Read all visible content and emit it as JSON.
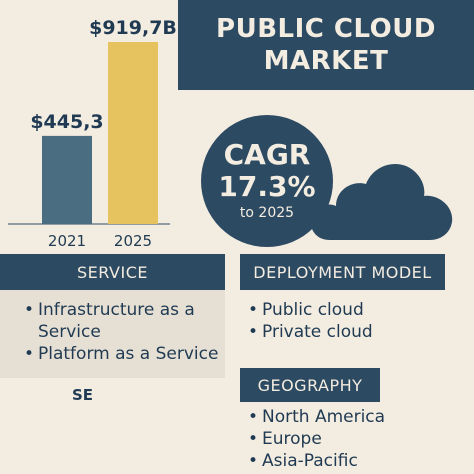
{
  "title": {
    "line1": "PUBLIC CLOUD",
    "line2": "MARKET"
  },
  "cagr": {
    "label": "CAGR",
    "value": "17.3%",
    "period": "to 2025"
  },
  "chart_data": {
    "type": "bar",
    "categories": [
      "2021",
      "2025"
    ],
    "values": [
      445.3,
      919.7
    ],
    "data_labels": [
      "$445,3",
      "$919,7B"
    ],
    "colors": [
      "#4a6d82",
      "#e6c35e"
    ]
  },
  "sections": {
    "service": {
      "header": "SERVICE",
      "items": [
        "Infrastructure as a Service",
        "Platform as a Service"
      ],
      "bullet": "•"
    },
    "deployment": {
      "header": "DEPLOYMENT MODEL",
      "items": [
        "Public cloud",
        "Private cloud"
      ],
      "bullet": "•"
    },
    "geography": {
      "header": "GEOGRAPHY",
      "items": [
        "North America",
        "Europe",
        "Asia-Pacific"
      ],
      "bullet": "•"
    }
  },
  "fragment": "SE",
  "colors": {
    "navy": "#2d4a63",
    "background": "#f3ece0",
    "gold": "#e6c35e",
    "steel": "#4a6d82"
  },
  "icons": {
    "cloud": "cloud-icon"
  }
}
